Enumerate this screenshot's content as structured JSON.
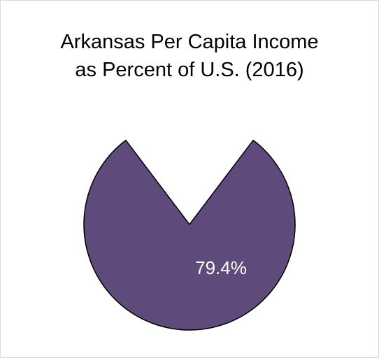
{
  "chart_data": {
    "type": "pie",
    "title": [
      "Arkansas Per Capita Income",
      "as Percent of U.S. (2016)"
    ],
    "slices": [
      {
        "label": "",
        "value": 79.4,
        "color": "#5e4b7b",
        "shown": true
      },
      {
        "label": "",
        "value": 20.6,
        "color": "#ffffff",
        "shown": false
      }
    ],
    "data_labels": [
      "79.4%"
    ],
    "legend": "none"
  }
}
